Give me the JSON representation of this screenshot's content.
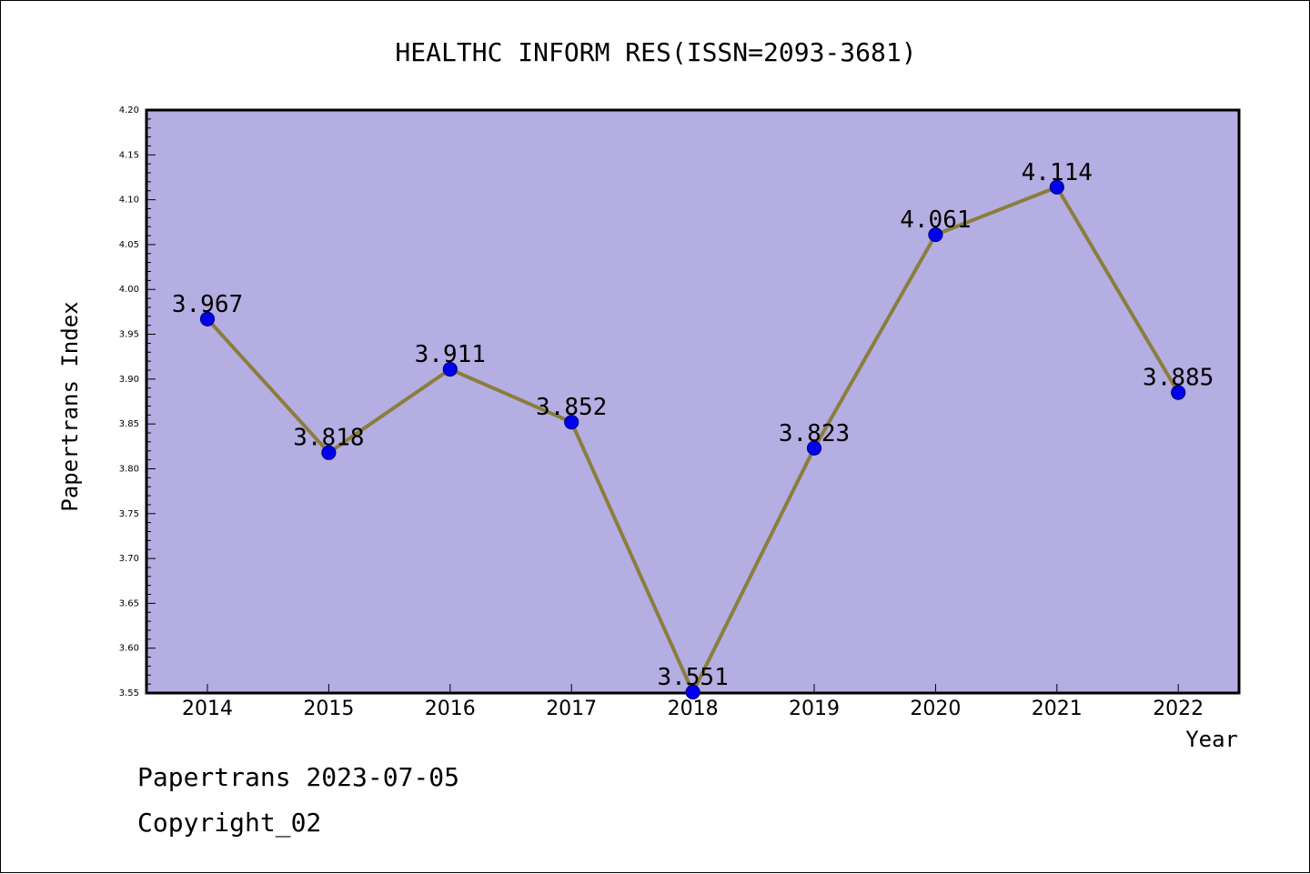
{
  "chart_data": {
    "type": "line",
    "title": "HEALTHC INFORM RES(ISSN=2093-3681)",
    "xlabel": "Year",
    "ylabel": "Papertrans Index",
    "categories": [
      "2014",
      "2015",
      "2016",
      "2017",
      "2018",
      "2019",
      "2020",
      "2021",
      "2022"
    ],
    "series": [
      {
        "values": [
          3.967,
          3.818,
          3.911,
          3.852,
          3.551,
          3.823,
          4.061,
          4.114,
          3.885
        ],
        "labels": [
          "3.967",
          "3.818",
          "3.911",
          "3.852",
          "3.551",
          "3.823",
          "4.061",
          "4.114",
          "3.885"
        ]
      }
    ],
    "ylim": [
      3.55,
      4.2
    ],
    "yticks": [
      "3.55",
      "3.60",
      "3.65",
      "3.70",
      "3.75",
      "3.80",
      "3.85",
      "3.90",
      "3.95",
      "4.00",
      "4.05",
      "4.10",
      "4.15",
      "4.20"
    ],
    "grid": false,
    "legend": "none",
    "colors": {
      "plot_background": "#b4aee2",
      "line": "#8b7d3c",
      "marker": "#0000ee",
      "marker_edge": "#00008b",
      "axis": "#000000"
    }
  },
  "footer": {
    "line1": "Papertrans 2023-07-05",
    "line2": "Copyright_02"
  }
}
